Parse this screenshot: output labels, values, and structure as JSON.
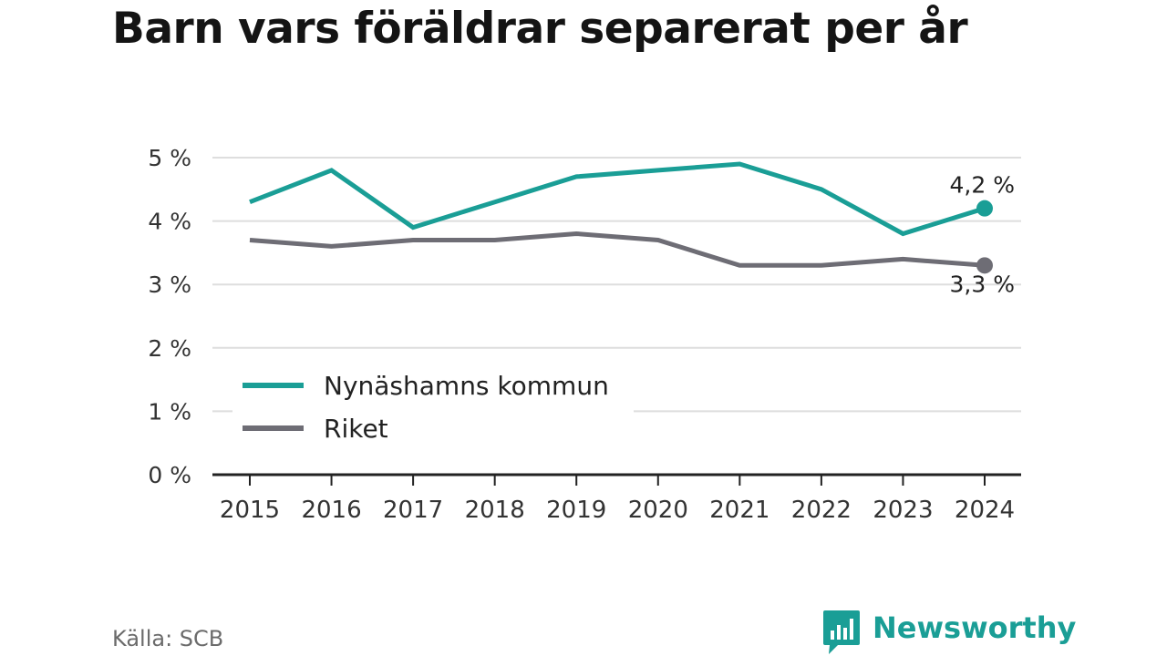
{
  "title": "Barn vars föräldrar separerat per år",
  "source": "Källa: SCB",
  "brand": {
    "name": "Newsworthy",
    "icon": "bar-chart-speech-bubble-icon",
    "color": "#1a9e96"
  },
  "chart_data": {
    "type": "line",
    "title": "Barn vars föräldrar separerat per år",
    "xlabel": "",
    "ylabel": "",
    "categories": [
      "2015",
      "2016",
      "2017",
      "2018",
      "2019",
      "2020",
      "2021",
      "2022",
      "2023",
      "2024"
    ],
    "ylim": [
      0,
      5
    ],
    "yticks": [
      0,
      1,
      2,
      3,
      4,
      5
    ],
    "ytick_labels": [
      "0 %",
      "1 %",
      "2 %",
      "3 %",
      "4 %",
      "5 %"
    ],
    "grid": true,
    "legend_position": "bottom-left",
    "series": [
      {
        "name": "Nynäshamns kommun",
        "color": "#1a9e96",
        "values": [
          4.3,
          4.8,
          3.9,
          4.3,
          4.7,
          4.8,
          4.9,
          4.5,
          3.8,
          4.2
        ],
        "end_label": "4,2 %"
      },
      {
        "name": "Riket",
        "color": "#6e6d75",
        "values": [
          3.7,
          3.6,
          3.7,
          3.7,
          3.8,
          3.7,
          3.3,
          3.3,
          3.4,
          3.3
        ],
        "end_label": "3,3 %"
      }
    ]
  }
}
